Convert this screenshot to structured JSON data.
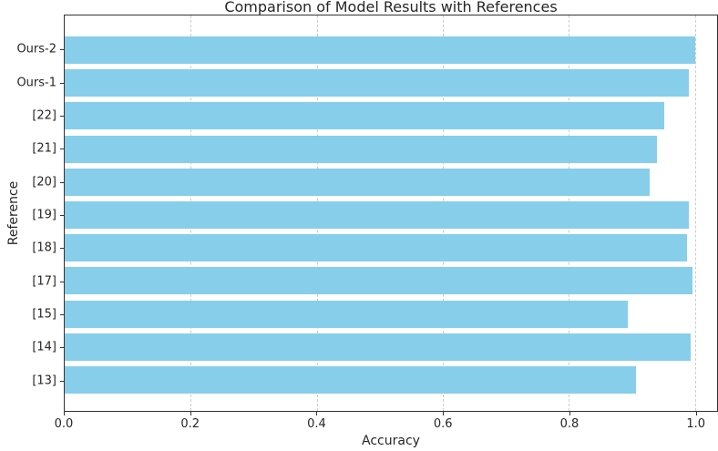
{
  "chart_data": {
    "type": "bar",
    "orientation": "horizontal",
    "title": "Comparison of Model Results with References",
    "xlabel": "Accuracy",
    "ylabel": "Reference",
    "categories": [
      "Ours-2",
      "Ours-1",
      "[22]",
      "[21]",
      "[20]",
      "[19]",
      "[18]",
      "[17]",
      "[15]",
      "[14]",
      "[13]"
    ],
    "values": [
      1.0,
      0.99,
      0.951,
      0.939,
      0.928,
      0.99,
      0.988,
      0.996,
      0.893,
      0.993,
      0.906
    ],
    "category_order": "top-to-bottom",
    "xticks": [
      0.0,
      0.2,
      0.4,
      0.6,
      0.8,
      1.0
    ],
    "xtick_labels": [
      "0.0",
      "0.2",
      "0.4",
      "0.6",
      "0.8",
      "1.0"
    ],
    "xlim": [
      0,
      1.035
    ],
    "grid": "vertical-dashed",
    "legend": "none",
    "colors": {
      "bar": "#87CEEB",
      "grid": "#cccccc",
      "spine": "#333333",
      "text": "#262626"
    }
  }
}
